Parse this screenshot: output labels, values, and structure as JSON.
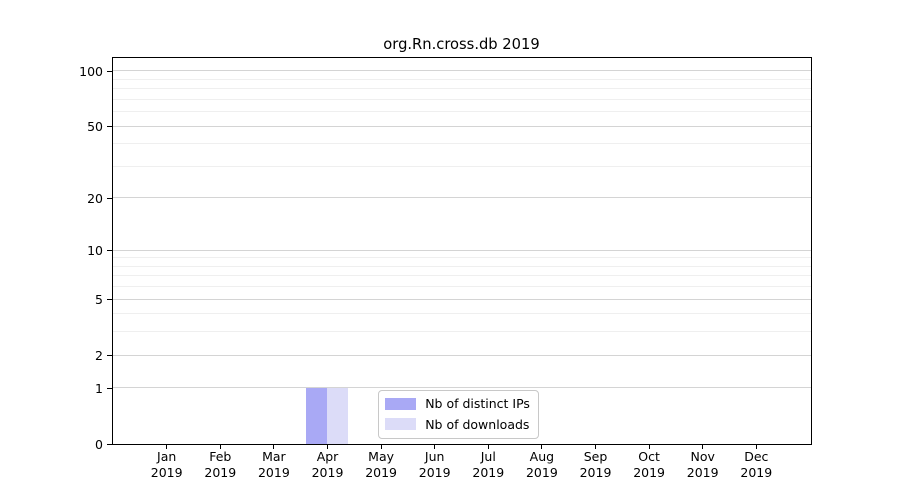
{
  "chart_data": {
    "type": "bar",
    "title": "org.Rn.cross.db 2019",
    "months": [
      "Jan",
      "Feb",
      "Mar",
      "Apr",
      "May",
      "Jun",
      "Jul",
      "Aug",
      "Sep",
      "Oct",
      "Nov",
      "Dec"
    ],
    "year_label": "2019",
    "series": [
      {
        "name": "Nb of distinct IPs",
        "color": "#a9a9f5",
        "values": [
          0,
          0,
          0,
          1,
          0,
          0,
          0,
          0,
          0,
          0,
          0,
          0
        ]
      },
      {
        "name": "Nb of downloads",
        "color": "#dcdcf8",
        "values": [
          0,
          0,
          0,
          1,
          0,
          0,
          0,
          0,
          0,
          0,
          0,
          0
        ]
      }
    ],
    "y_axis": {
      "scale": "log1p",
      "major_ticks": [
        0,
        1,
        2,
        5,
        10,
        20,
        50,
        100
      ],
      "minor_ticks": [
        3,
        4,
        6,
        7,
        8,
        9,
        30,
        40,
        60,
        70,
        80,
        90
      ],
      "ylim": [
        0,
        117
      ]
    },
    "xlabel": "",
    "ylabel": "",
    "grid": true,
    "legend_position": "bottom-center-inside"
  }
}
